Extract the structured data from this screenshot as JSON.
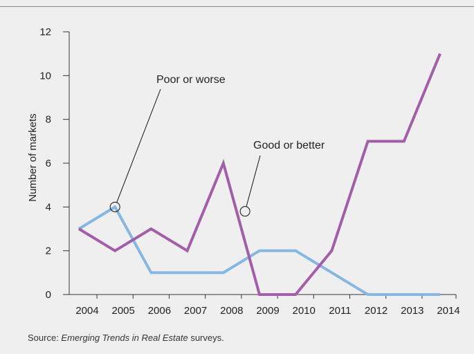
{
  "chart_data": {
    "type": "line",
    "title": "",
    "xlabel": "",
    "ylabel": "Number of markets",
    "x": [
      "2004",
      "2005",
      "2006",
      "2007",
      "2008",
      "2009",
      "2010",
      "2011",
      "2012",
      "2013",
      "2014"
    ],
    "ylim": [
      0,
      12
    ],
    "yticks": [
      "0",
      "2",
      "4",
      "6",
      "8",
      "10",
      "12"
    ],
    "grid": false,
    "series": [
      {
        "name": "Good or better",
        "color": "#a25ea8",
        "values": [
          3,
          2,
          3,
          2,
          6,
          0,
          0,
          2,
          7,
          7,
          11
        ]
      },
      {
        "name": "Poor or worse",
        "color": "#86b7e0",
        "values": [
          3,
          4,
          1,
          1,
          1,
          2,
          2,
          1,
          0,
          0,
          0
        ]
      }
    ],
    "annotations": [
      {
        "text": "Poor or worse",
        "series": "Poor or worse",
        "x": "2005",
        "y": 4
      },
      {
        "text": "Good or better",
        "series": "Good or better",
        "x": "2008.6",
        "y": 3.8
      }
    ]
  },
  "source": {
    "prefix": "Source: ",
    "title": "Emerging Trends in Real Estate",
    "suffix": " surveys."
  }
}
